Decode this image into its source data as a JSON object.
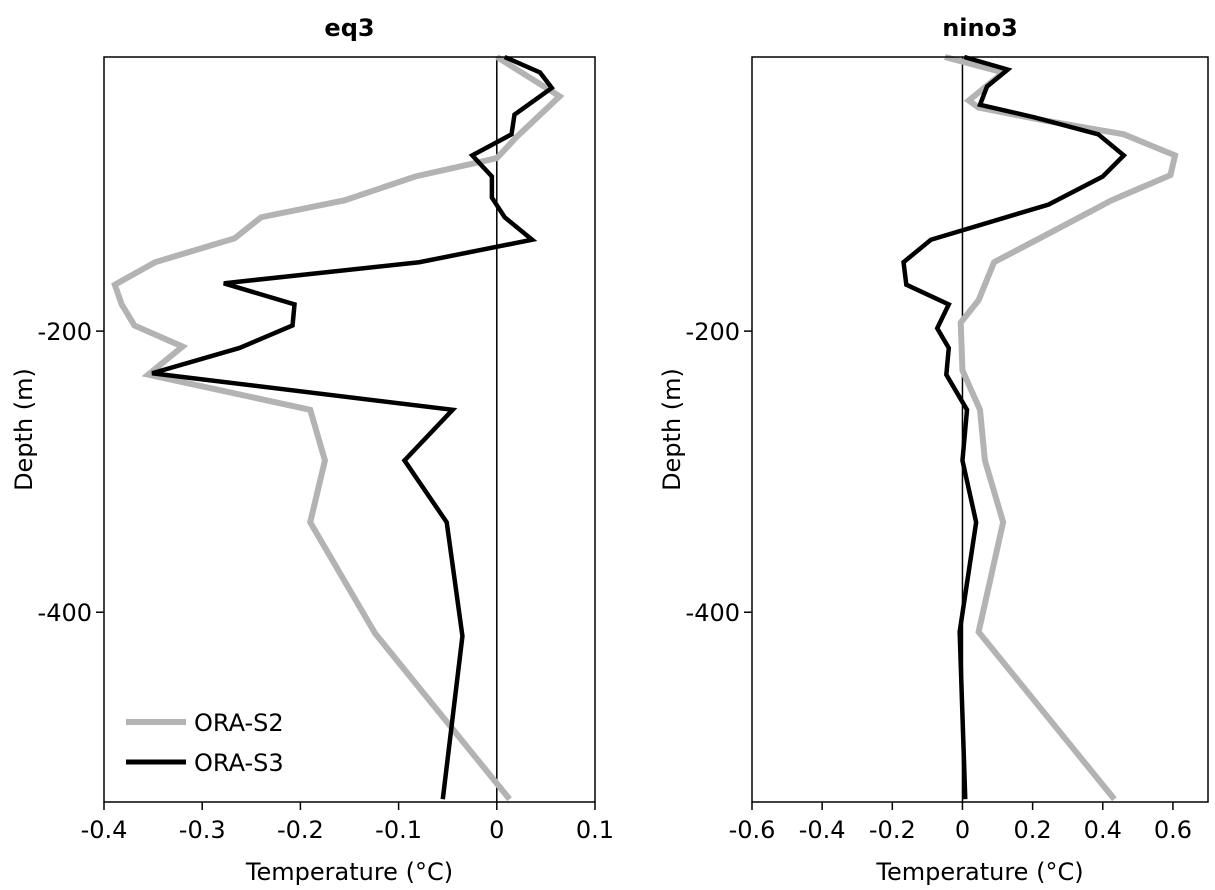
{
  "chart_data": [
    {
      "type": "line",
      "title": "eq3",
      "x_label": "Temperature (°C)",
      "y_label": "Depth (m)",
      "xlim": [
        -0.4,
        0.1
      ],
      "xticks": [
        -0.4,
        -0.3,
        -0.2,
        -0.1,
        0,
        0.1
      ],
      "ylim": [
        -535,
        -5
      ],
      "yticks": [
        -400,
        -200
      ],
      "zero_line": true,
      "legend": "lower left",
      "series": [
        {
          "name": "ORA-S2",
          "color": "#b3b3b3",
          "x": [
            0,
            0.064,
            0.02,
            0,
            -0.083,
            -0.155,
            -0.24,
            -0.267,
            -0.348,
            -0.389,
            -0.382,
            -0.369,
            -0.32,
            -0.355,
            -0.19,
            -0.175,
            -0.19,
            -0.124,
            0.013
          ],
          "values": [
            -5,
            -33,
            -62,
            -77,
            -90,
            -107,
            -119,
            -134,
            -151,
            -167,
            -181,
            -196,
            -211,
            -231,
            -256,
            -292,
            -336,
            -415,
            -533
          ]
        },
        {
          "name": "ORA-S3",
          "color": "#000000",
          "x": [
            0.008,
            0.044,
            0.056,
            0.018,
            0.015,
            -0.025,
            -0.005,
            -0.005,
            0.008,
            0.036,
            -0.079,
            -0.278,
            -0.206,
            -0.208,
            -0.262,
            -0.351,
            -0.045,
            -0.094,
            -0.051,
            -0.035,
            -0.055
          ],
          "values": [
            -5,
            -16,
            -27,
            -46,
            -60,
            -75,
            -90,
            -105,
            -119,
            -135,
            -151,
            -166,
            -181,
            -196,
            -212,
            -230,
            -256,
            -292,
            -336,
            -417,
            -533
          ]
        }
      ]
    },
    {
      "type": "line",
      "title": "nino3",
      "x_label": "Temperature (°C)",
      "y_label": "Depth (m)",
      "xlim": [
        -0.6,
        0.7
      ],
      "xticks": [
        -0.6,
        -0.4,
        -0.2,
        0,
        0.2,
        0.4,
        0.6
      ],
      "ylim": [
        -535,
        -5
      ],
      "yticks": [
        -400,
        -200
      ],
      "zero_line": true,
      "series": [
        {
          "color": "#b3b3b3",
          "x": [
            -0.05,
            0.116,
            0.018,
            0.046,
            0.23,
            0.46,
            0.606,
            0.593,
            0.425,
            0.258,
            0.09,
            0.046,
            -0.005,
            0,
            0.05,
            0.064,
            0.116,
            0.046,
            0.433
          ],
          "values": [
            -5,
            -16,
            -36,
            -41,
            -50,
            -60,
            -75,
            -89,
            -107,
            -129,
            -151,
            -178,
            -194,
            -228,
            -256,
            -292,
            -336,
            -414,
            -533
          ]
        },
        {
          "color": "#000000",
          "x": [
            0.005,
            0.129,
            0.07,
            0.05,
            0.206,
            0.387,
            0.46,
            0.4,
            0.245,
            -0.09,
            -0.168,
            -0.16,
            -0.039,
            -0.072,
            -0.039,
            -0.046,
            0.013,
            0,
            0.039,
            -0.008,
            0.008
          ],
          "values": [
            -5,
            -14,
            -26,
            -39,
            -48,
            -60,
            -75,
            -90,
            -110,
            -135,
            -151,
            -167,
            -181,
            -198,
            -212,
            -231,
            -256,
            -292,
            -336,
            -414,
            -533
          ]
        }
      ]
    }
  ]
}
